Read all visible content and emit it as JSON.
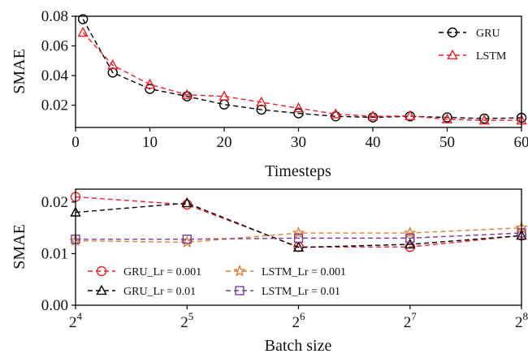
{
  "chart_data": [
    {
      "type": "line",
      "xlabel": "Timesteps",
      "ylabel": "SMAE",
      "xlim": [
        0,
        60
      ],
      "ylim": [
        0.005,
        0.08
      ],
      "xticks": [
        0,
        10,
        20,
        30,
        40,
        50,
        60
      ],
      "xtick_labels": [
        "0",
        "10",
        "20",
        "30",
        "40",
        "50",
        "60"
      ],
      "yticks": [
        0.02,
        0.04,
        0.06,
        0.08
      ],
      "ytick_labels": [
        "0.02",
        "0.04",
        "0.06",
        "0.08"
      ],
      "legend_position": "top-right",
      "series": [
        {
          "name": "GRU",
          "color": "#000000",
          "marker": "circle",
          "x": [
            1,
            5,
            10,
            15,
            20,
            25,
            30,
            35,
            40,
            45,
            50,
            55,
            60
          ],
          "y": [
            0.078,
            0.042,
            0.031,
            0.026,
            0.0205,
            0.017,
            0.0145,
            0.0125,
            0.0118,
            0.0125,
            0.0118,
            0.011,
            0.0115
          ]
        },
        {
          "name": "LSTM",
          "color": "#e8222a",
          "marker": "triangle",
          "x": [
            1,
            5,
            10,
            15,
            20,
            25,
            30,
            35,
            40,
            45,
            50,
            55,
            60
          ],
          "y": [
            0.069,
            0.047,
            0.034,
            0.027,
            0.026,
            0.022,
            0.018,
            0.014,
            0.0125,
            0.0128,
            0.0105,
            0.0098,
            0.0098
          ]
        }
      ]
    },
    {
      "type": "line",
      "xlabel": "Batch size",
      "ylabel": "SMAE",
      "x_scale": "log2",
      "xlim": [
        16,
        256
      ],
      "ylim": [
        0.0,
        0.0225
      ],
      "xticks": [
        16,
        32,
        64,
        128,
        256
      ],
      "xtick_labels": [
        {
          "base": "2",
          "exp": "4"
        },
        {
          "base": "2",
          "exp": "5"
        },
        {
          "base": "2",
          "exp": "6"
        },
        {
          "base": "2",
          "exp": "7"
        },
        {
          "base": "2",
          "exp": "8"
        }
      ],
      "yticks": [
        0.0,
        0.01,
        0.02
      ],
      "ytick_labels": [
        "0.00",
        "0.01",
        "0.02"
      ],
      "legend_position": "bottom-left",
      "categories": [
        16,
        32,
        64,
        128,
        256
      ],
      "series": [
        {
          "name": "GRU_Lr = 0.001",
          "color": "#e8222a",
          "marker": "circle",
          "values": [
            0.021,
            0.0195,
            0.0113,
            0.0113,
            0.0135
          ]
        },
        {
          "name": "GRU_Lr = 0.01",
          "color": "#000000",
          "marker": "triangle",
          "values": [
            0.018,
            0.0198,
            0.0112,
            0.0118,
            0.0135
          ]
        },
        {
          "name": "LSTM_Lr = 0.001",
          "color": "#d9823b",
          "marker": "star",
          "values": [
            0.0125,
            0.0122,
            0.014,
            0.014,
            0.015
          ]
        },
        {
          "name": "LSTM_Lr = 0.01",
          "color": "#7b3a96",
          "marker": "square",
          "values": [
            0.0128,
            0.0128,
            0.013,
            0.013,
            0.014
          ]
        }
      ]
    }
  ]
}
